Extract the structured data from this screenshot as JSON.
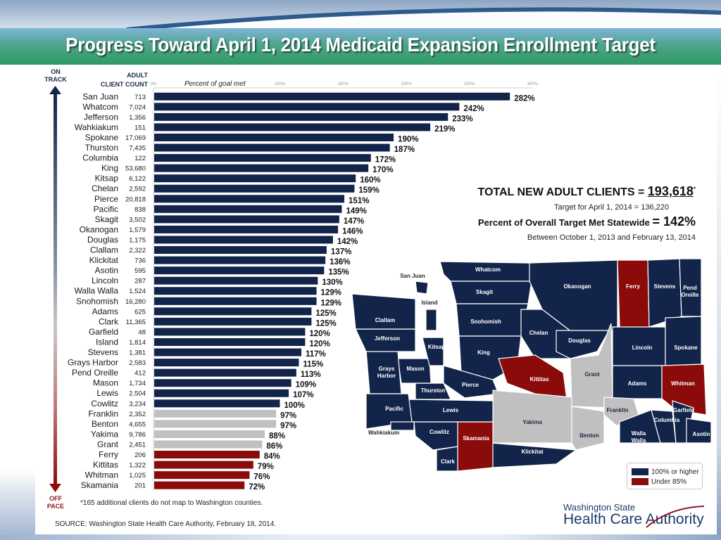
{
  "header": {
    "title": "Progress Toward April 1, 2014 Medicaid Expansion Enrollment Target"
  },
  "side_labels": {
    "on_track": [
      "ON",
      "TRACK"
    ],
    "off_pace": [
      "OFF",
      "PACE"
    ]
  },
  "table_headers": {
    "adult": "ADULT",
    "client_count": "CLIENT COUNT",
    "axis_caption": "Percent of goal met"
  },
  "colors": {
    "on_track": "#13244a",
    "near": "#c0c0c0",
    "under": "#8b0a0a",
    "title_green": "#2f9a62"
  },
  "chart_data": {
    "type": "bar",
    "orientation": "horizontal",
    "title": "Progress Toward April 1, 2014 Medicaid Expansion Enrollment Target",
    "xlabel": "Percent of goal met",
    "ylabel": "",
    "xlim": [
      0,
      300
    ],
    "x_ticks": [
      "0%",
      "100%",
      "150%",
      "200%",
      "250%",
      "300%"
    ],
    "x_tick_values": [
      0,
      100,
      150,
      200,
      250,
      300
    ],
    "grid": false,
    "categories": [
      "San Juan",
      "Whatcom",
      "Jefferson",
      "Wahkiakum",
      "Spokane",
      "Thurston",
      "Columbia",
      "King",
      "Kitsap",
      "Chelan",
      "Pierce",
      "Pacific",
      "Skagit",
      "Okanogan",
      "Douglas",
      "Clallam",
      "Klickitat",
      "Asotin",
      "Lincoln",
      "Walla Walla",
      "Snohomish",
      "Adams",
      "Clark",
      "Garfield",
      "Island",
      "Stevens",
      "Grays Harbor",
      "Pend Oreille",
      "Mason",
      "Lewis",
      "Cowlitz",
      "Franklin",
      "Benton",
      "Yakima",
      "Grant",
      "Ferry",
      "Kittitas",
      "Whitman",
      "Skamania"
    ],
    "client_counts": [
      "713",
      "7,024",
      "1,356",
      "151",
      "17,069",
      "7,435",
      "122",
      "53,680",
      "6,122",
      "2,592",
      "20,818",
      "838",
      "3,502",
      "1,579",
      "1,175",
      "2,322",
      "736",
      "595",
      "287",
      "1,524",
      "16,280",
      "625",
      "11,365",
      "48",
      "1,814",
      "1,381",
      "2,583",
      "412",
      "1,734",
      "2,504",
      "3,234",
      "2,352",
      "4,655",
      "9,786",
      "2,451",
      "206",
      "1,322",
      "1,025",
      "201"
    ],
    "values": [
      282,
      242,
      233,
      219,
      190,
      187,
      172,
      170,
      160,
      159,
      151,
      149,
      147,
      146,
      142,
      137,
      136,
      135,
      130,
      129,
      129,
      125,
      125,
      120,
      120,
      117,
      115,
      113,
      109,
      107,
      100,
      97,
      97,
      88,
      86,
      84,
      79,
      76,
      72
    ],
    "value_labels": [
      "282%",
      "242%",
      "233%",
      "219%",
      "190%",
      "187%",
      "172%",
      "170%",
      "160%",
      "159%",
      "151%",
      "149%",
      "147%",
      "146%",
      "142%",
      "137%",
      "136%",
      "135%",
      "130%",
      "129%",
      "129%",
      "125%",
      "125%",
      "120%",
      "120%",
      "117%",
      "115%",
      "113%",
      "109%",
      "107%",
      "100%",
      "97%",
      "97%",
      "88%",
      "86%",
      "84%",
      "79%",
      "76%",
      "72%"
    ],
    "legend": [
      {
        "label": "100% or higher",
        "color": "#13244a"
      },
      {
        "label": "Under 85%",
        "color": "#8b0a0a"
      }
    ],
    "legend_position": "bottom-right"
  },
  "summary": {
    "total_label": "TOTAL NEW ADULT CLIENTS = ",
    "total_value": "193,618",
    "total_asterisk": "*",
    "target_text": "Target for April 1, 2014 = 136,220",
    "percent_label": "Percent of Overall Target Met Statewide ",
    "percent_value": "= 142%",
    "period_text": "Between October 1, 2013 and February 13, 2014"
  },
  "map": {
    "labels": [
      {
        "name": "Whatcom",
        "status": "on"
      },
      {
        "name": "San Juan",
        "status": "outside"
      },
      {
        "name": "Skagit",
        "status": "on"
      },
      {
        "name": "Island",
        "status": "outside"
      },
      {
        "name": "Okanogan",
        "status": "on"
      },
      {
        "name": "Ferry",
        "status": "under"
      },
      {
        "name": "Stevens",
        "status": "on"
      },
      {
        "name": "Pend Oreille",
        "status": "on"
      },
      {
        "name": "Clallam",
        "status": "on"
      },
      {
        "name": "Snohomish",
        "status": "on"
      },
      {
        "name": "Chelan",
        "status": "on"
      },
      {
        "name": "Douglas",
        "status": "on"
      },
      {
        "name": "Jefferson",
        "status": "on"
      },
      {
        "name": "Kitsap",
        "status": "on"
      },
      {
        "name": "King",
        "status": "on"
      },
      {
        "name": "Lincoln",
        "status": "on"
      },
      {
        "name": "Spokane",
        "status": "on"
      },
      {
        "name": "Grays Harbor",
        "status": "on"
      },
      {
        "name": "Mason",
        "status": "on"
      },
      {
        "name": "Kittitas",
        "status": "under"
      },
      {
        "name": "Grant",
        "status": "near"
      },
      {
        "name": "Adams",
        "status": "on"
      },
      {
        "name": "Whitman",
        "status": "under"
      },
      {
        "name": "Thurston",
        "status": "on"
      },
      {
        "name": "Pierce",
        "status": "on"
      },
      {
        "name": "Pacific",
        "status": "on"
      },
      {
        "name": "Lewis",
        "status": "on"
      },
      {
        "name": "Franklin",
        "status": "near"
      },
      {
        "name": "Garfield",
        "status": "on"
      },
      {
        "name": "Columbia",
        "status": "on"
      },
      {
        "name": "Yakima",
        "status": "near"
      },
      {
        "name": "Wahkiakum",
        "status": "outside"
      },
      {
        "name": "Cowlitz",
        "status": "on"
      },
      {
        "name": "Skamania",
        "status": "under"
      },
      {
        "name": "Benton",
        "status": "near"
      },
      {
        "name": "Walla Walla",
        "status": "on"
      },
      {
        "name": "Asotin",
        "status": "on"
      },
      {
        "name": "Klickitat",
        "status": "on"
      },
      {
        "name": "Clark",
        "status": "on"
      }
    ]
  },
  "footnote": "*165 additional clients do not map to Washington counties.",
  "source": "SOURCE: Washington State Health Care Authority, February 18, 2014.",
  "logo": {
    "line1": "Washington State",
    "line2": "Health Care Authority"
  }
}
